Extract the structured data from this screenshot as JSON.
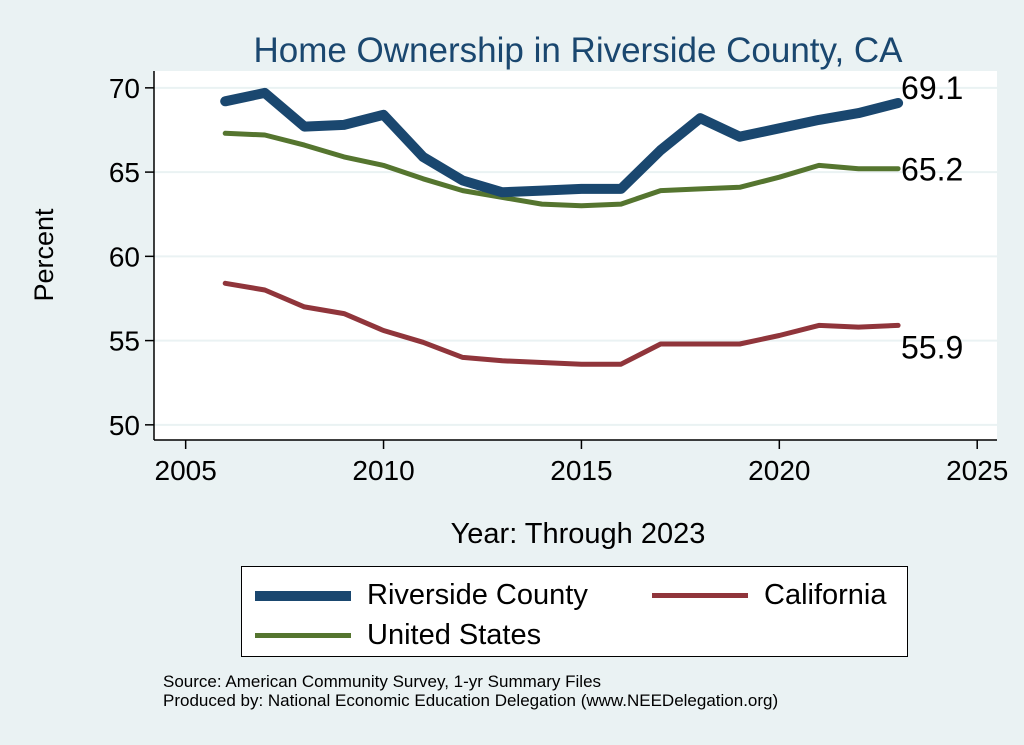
{
  "colors": {
    "background": "#eaf2f3",
    "plot_background": "#ffffff",
    "gridline": "#eaf2f3",
    "title": "#1a476f",
    "riverside": "#1a476f",
    "california": "#90353b",
    "united_states": "#55752f"
  },
  "chart_data": {
    "type": "line",
    "title": "Home Ownership in Riverside County, CA",
    "xlabel": "Year: Through 2023",
    "ylabel": "Percent",
    "xlim": [
      2004.2,
      2025.5
    ],
    "ylim": [
      49.1,
      71.0
    ],
    "xticks": [
      2005,
      2010,
      2015,
      2020,
      2025
    ],
    "yticks": [
      50,
      55,
      60,
      65,
      70
    ],
    "grid": true,
    "legend_position": "bottom",
    "x": [
      2006,
      2007,
      2008,
      2009,
      2010,
      2011,
      2012,
      2013,
      2014,
      2015,
      2016,
      2017,
      2018,
      2019,
      2020,
      2021,
      2022,
      2023
    ],
    "series": [
      {
        "name": "Riverside County",
        "color": "#1a476f",
        "values": [
          69.2,
          69.7,
          67.7,
          67.8,
          68.4,
          65.9,
          64.5,
          63.8,
          63.9,
          64.0,
          64.0,
          66.3,
          68.2,
          67.1,
          67.6,
          68.1,
          68.5,
          69.1
        ],
        "end_label": "69.1"
      },
      {
        "name": "California",
        "color": "#90353b",
        "values": [
          58.4,
          58.0,
          57.0,
          56.6,
          55.6,
          54.9,
          54.0,
          53.8,
          53.7,
          53.6,
          53.6,
          54.8,
          54.8,
          54.8,
          55.3,
          55.9,
          55.8,
          55.9
        ],
        "end_label": "55.9"
      },
      {
        "name": "United States",
        "color": "#55752f",
        "values": [
          67.3,
          67.2,
          66.6,
          65.9,
          65.4,
          64.6,
          63.9,
          63.5,
          63.1,
          63.0,
          63.1,
          63.9,
          64.0,
          64.1,
          64.7,
          65.4,
          65.2,
          65.2
        ],
        "end_label": "65.2"
      }
    ]
  },
  "legend": {
    "items": [
      {
        "label": "Riverside County",
        "color": "#1a476f"
      },
      {
        "label": "California",
        "color": "#90353b"
      },
      {
        "label": "United States",
        "color": "#55752f"
      }
    ]
  },
  "notes": {
    "source": "Source: American Community Survey, 1-yr Summary Files",
    "produced_by": "Produced by: National Economic Education Delegation (www.NEEDelegation.org)"
  }
}
